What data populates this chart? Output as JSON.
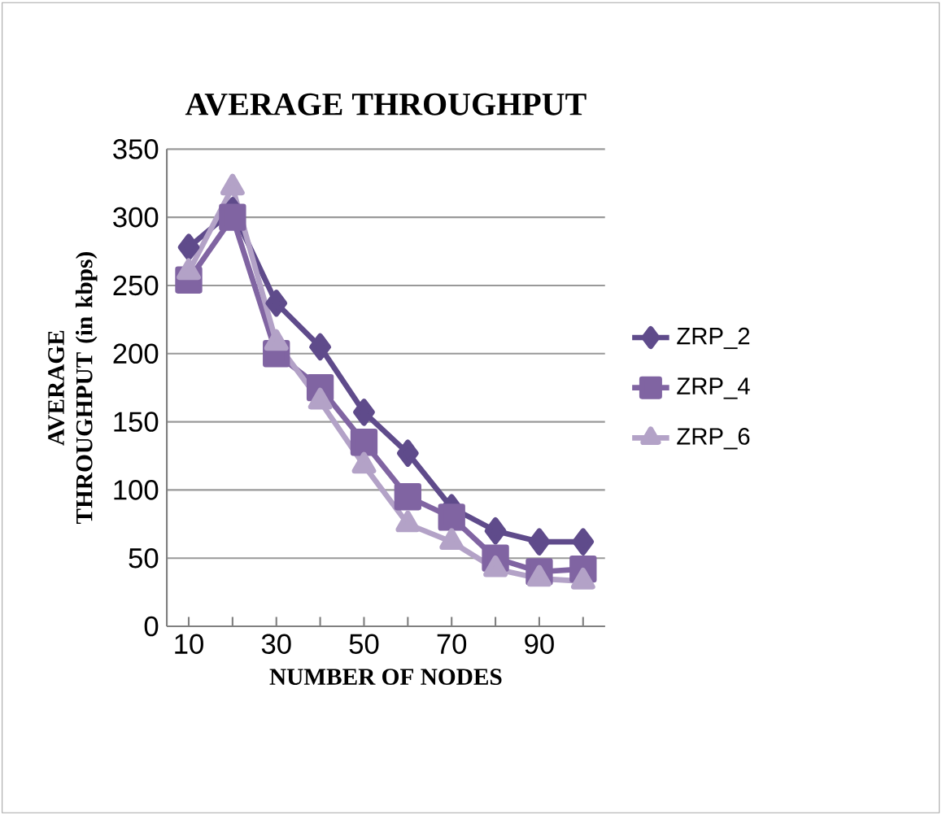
{
  "chart_data": {
    "type": "line",
    "title": "AVERAGE THROUGHPUT",
    "xlabel": "NUMBER OF NODES",
    "ylabel": "AVERAGE THROUGHPUT (in kbps)",
    "categories": [
      "10",
      null,
      "30",
      null,
      "50",
      null,
      "70",
      null,
      "90",
      null
    ],
    "series": [
      {
        "name": "ZRP_2",
        "color": "#5f4b8b",
        "marker": "diamond",
        "values": [
          278,
          305,
          237,
          205,
          157,
          127,
          87,
          70,
          62,
          62
        ]
      },
      {
        "name": "ZRP_4",
        "color": "#8064a2",
        "marker": "square",
        "values": [
          254,
          300,
          200,
          175,
          135,
          95,
          80,
          50,
          40,
          42
        ]
      },
      {
        "name": "ZRP_6",
        "color": "#b3a2c7",
        "marker": "triangle",
        "values": [
          260,
          322,
          208,
          165,
          118,
          75,
          62,
          42,
          35,
          33
        ]
      }
    ],
    "ylim": [
      0,
      350
    ],
    "yticks": [
      0,
      50,
      100,
      150,
      200,
      250,
      300,
      350
    ],
    "grid": "y",
    "legend": "right",
    "line_style": "solid"
  }
}
